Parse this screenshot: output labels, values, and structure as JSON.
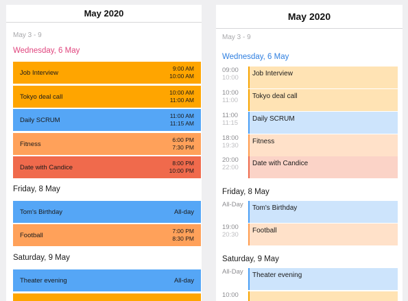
{
  "left": {
    "title": "May 2020",
    "week": "May 3 - 9",
    "days": [
      {
        "label": "Wednesday, 6 May"
      },
      {
        "label": "Friday, 8 May"
      },
      {
        "label": "Saturday, 9 May"
      }
    ],
    "events": [
      {
        "name": "Job Interview",
        "start": "9:00 AM",
        "end": "10:00 AM",
        "color": "#ffa500"
      },
      {
        "name": "Tokyo deal call",
        "start": "10:00 AM",
        "end": "11:00 AM",
        "color": "#ffa500"
      },
      {
        "name": "Daily SCRUM",
        "start": "11:00 AM",
        "end": "11:15 AM",
        "color": "#55a6f6"
      },
      {
        "name": "Fitness",
        "start": "6:00 PM",
        "end": "7:30 PM",
        "color": "#ffa15a"
      },
      {
        "name": "Date with Candice",
        "start": "8:00 PM",
        "end": "10:00 PM",
        "color": "#f06a4c"
      },
      {
        "name": "Tom's Birthday",
        "allday": "All-day",
        "color": "#55a6f6"
      },
      {
        "name": "Football",
        "start": "7:00 PM",
        "end": "8:30 PM",
        "color": "#ffa15a"
      },
      {
        "name": "Theater evening",
        "allday": "All-day",
        "color": "#55a6f6"
      }
    ]
  },
  "right": {
    "title": "May 2020",
    "week": "May 3 - 9",
    "days": [
      {
        "label": "Wednesday, 6 May"
      },
      {
        "label": "Friday, 8 May"
      },
      {
        "label": "Saturday, 9 May"
      }
    ],
    "events": [
      {
        "name": "Job Interview",
        "start": "09:00",
        "end": "10:00",
        "bg": "#ffe3b4",
        "bar": "#f7a400"
      },
      {
        "name": "Tokyo deal call",
        "start": "10:00",
        "end": "11:00",
        "bg": "#ffe3b4",
        "bar": "#f7a400"
      },
      {
        "name": "Daily SCRUM",
        "start": "11:00",
        "end": "11:15",
        "bg": "#cde4fc",
        "bar": "#4a9ef4"
      },
      {
        "name": "Fitness",
        "start": "18:00",
        "end": "19:30",
        "bg": "#ffe1c9",
        "bar": "#ff9c4e"
      },
      {
        "name": "Date with Candice",
        "start": "20:00",
        "end": "22:00",
        "bg": "#fbd3c7",
        "bar": "#ee6a4c"
      },
      {
        "name": "Tom's Birthday",
        "start": "All-Day",
        "bg": "#cde4fc",
        "bar": "#4a9ef4"
      },
      {
        "name": "Football",
        "start": "19:00",
        "end": "20:30",
        "bg": "#ffe1c9",
        "bar": "#ff9c4e"
      },
      {
        "name": "Theater evening",
        "start": "All-Day",
        "bg": "#cde4fc",
        "bar": "#4a9ef4"
      },
      {
        "start": "10:00",
        "bg": "#ffe3b4",
        "bar": "#f7a400"
      }
    ]
  }
}
